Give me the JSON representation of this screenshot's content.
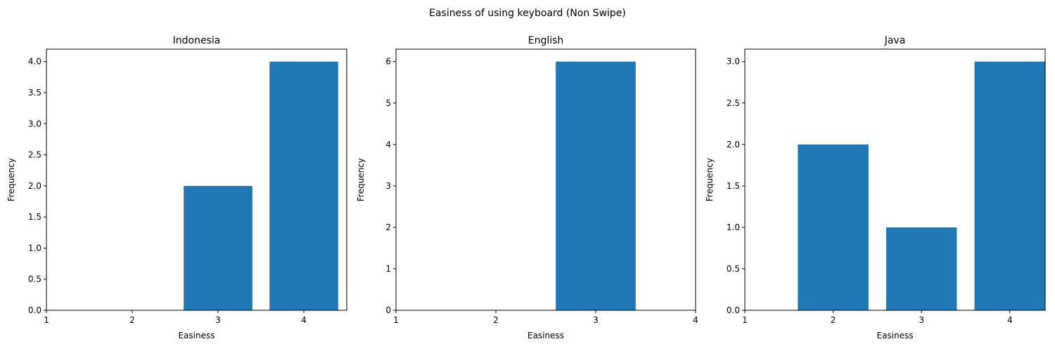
{
  "figure": {
    "suptitle": "Easiness of using keyboard (Non Swipe)",
    "bar_color": "#1f77b4"
  },
  "chart_data": [
    {
      "type": "bar",
      "title": "Indonesia",
      "xlabel": "Easiness",
      "ylabel": "Frequency",
      "categories": [
        3,
        4
      ],
      "values": [
        2,
        4
      ],
      "bar_width": 0.8,
      "xlim": [
        1,
        4.5
      ],
      "ylim": [
        0,
        4.2
      ],
      "xticks": [
        1,
        2,
        3,
        4
      ],
      "yticks": [
        0.0,
        0.5,
        1.0,
        1.5,
        2.0,
        2.5,
        3.0,
        3.5,
        4.0
      ],
      "ytick_labels": [
        "0.0",
        "0.5",
        "1.0",
        "1.5",
        "2.0",
        "2.5",
        "3.0",
        "3.5",
        "4.0"
      ],
      "grid": false
    },
    {
      "type": "bar",
      "title": "English",
      "xlabel": "Easiness",
      "ylabel": "Frequency",
      "categories": [
        3
      ],
      "values": [
        6
      ],
      "bar_width": 0.8,
      "xlim": [
        1,
        4
      ],
      "ylim": [
        0,
        6.3
      ],
      "xticks": [
        1,
        2,
        3,
        4
      ],
      "yticks": [
        0,
        1,
        2,
        3,
        4,
        5,
        6
      ],
      "ytick_labels": [
        "0",
        "1",
        "2",
        "3",
        "4",
        "5",
        "6"
      ],
      "grid": false
    },
    {
      "type": "bar",
      "title": "Java",
      "xlabel": "Easiness",
      "ylabel": "Frequency",
      "categories": [
        2,
        3,
        4
      ],
      "values": [
        2,
        1,
        3
      ],
      "bar_width": 0.8,
      "xlim": [
        1,
        4.4
      ],
      "ylim": [
        0,
        3.15
      ],
      "xticks": [
        1,
        2,
        3,
        4
      ],
      "yticks": [
        0.0,
        0.5,
        1.0,
        1.5,
        2.0,
        2.5,
        3.0
      ],
      "ytick_labels": [
        "0.0",
        "0.5",
        "1.0",
        "1.5",
        "2.0",
        "2.5",
        "3.0"
      ],
      "grid": false
    }
  ]
}
